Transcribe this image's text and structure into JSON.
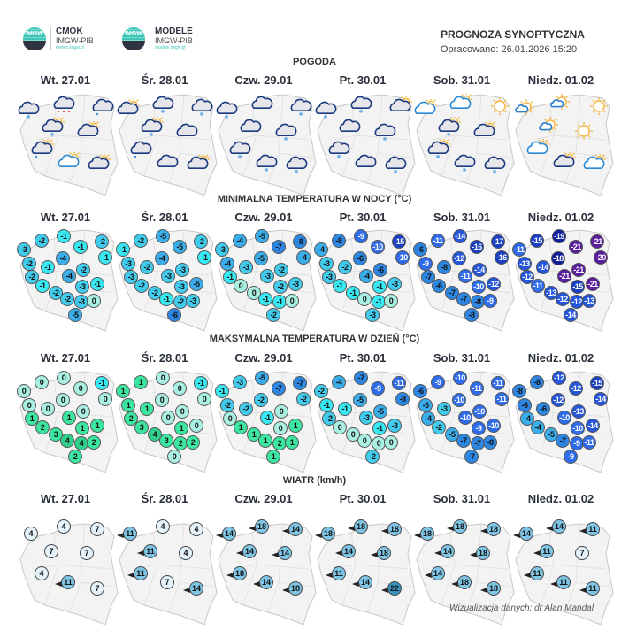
{
  "header": {
    "logo1": {
      "mark": "IMGW",
      "title": "CMOK",
      "sub": "IMGW-PIB",
      "url": "meteo.imgw.pl"
    },
    "logo2": {
      "mark": "IMGW",
      "title": "MODELE",
      "sub": "IMGW-PIB",
      "url": "modele.imgw.pl"
    },
    "title": "PROGNOZA SYNOPTYCZNA",
    "date": "Opracowano: 26.01.2026 15:20"
  },
  "days": [
    "Wt. 27.01",
    "Śr. 28.01",
    "Czw. 29.01",
    "Pt. 30.01",
    "Sob. 31.01",
    "Niedz. 01.02"
  ],
  "sections": {
    "weather": "POGODA",
    "tmin": "MINIMALNA TEMPERATURA W NOCY (°C)",
    "tmax": "MAKSYMALNA TEMPERATURA W DZIEŃ (°C)",
    "wind": "WIATR (km/h)"
  },
  "weather": [
    [
      "overcast-snow",
      "overcast-sleet",
      "overcast-rain",
      "cloud-sun-snow",
      "cloud-sun",
      "cloud-sun-rain",
      "light-cloud-sun",
      "cloud-sun"
    ],
    [
      "cloud-sun",
      "overcast-snow",
      "overcast-snow",
      "cloud-sun-snow",
      "overcast",
      "overcast-rain",
      "overcast",
      "cloud-sun"
    ],
    [
      "overcast-snow",
      "overcast",
      "overcast-snow",
      "overcast",
      "overcast-snow",
      "overcast-snow",
      "overcast-snow",
      "overcast-snow"
    ],
    [
      "overcast-snow",
      "overcast-snow",
      "cloud-sun",
      "overcast",
      "overcast-snow",
      "overcast-snow",
      "overcast",
      "overcast-snow"
    ],
    [
      "light-cloud-sun",
      "light-cloud-sun",
      "sun",
      "cloud-sun-snow",
      "cloud-sun",
      "cloud-sun-snow",
      "overcast-snow",
      "overcast-snow"
    ],
    [
      "sun-small-cloud",
      "sun-small-cloud",
      "sun",
      "sun-small-cloud",
      "sun",
      "light-cloud-sun",
      "cloud-sun",
      "light-cloud-sun"
    ]
  ],
  "tmin": [
    [
      "-2",
      "-1",
      "-3",
      "-1",
      "-2",
      "-1",
      "-4",
      "-2",
      "-1",
      "-2",
      "-2",
      "-4",
      "-1",
      "-3",
      "-1",
      "-2",
      "-2",
      "-3",
      "0",
      "-5"
    ],
    [
      "-2",
      "-5",
      "-1",
      "-5",
      "-2",
      "-1",
      "-4",
      "-3",
      "-2",
      "-3",
      "-3",
      "-3",
      "-2",
      "-3",
      "-5",
      "-2",
      "-1",
      "-2",
      "-3",
      "-6"
    ],
    [
      "-4",
      "-5",
      "-3",
      "-7",
      "-8",
      "-4",
      "-5",
      "-4",
      "-3",
      "-2",
      "-1",
      "-3",
      "0",
      "-2",
      "-3",
      "0",
      "-1",
      "-1",
      "0",
      "-2"
    ],
    [
      "-8",
      "-9",
      "-4",
      "-10",
      "-15",
      "-10",
      "-6",
      "-3",
      "-2",
      "-6",
      "-3",
      "-4",
      "-1",
      "-1",
      "-3",
      "-1",
      "0",
      "-1",
      "0",
      "-3"
    ],
    [
      "-11",
      "-14",
      "-6",
      "-16",
      "-17",
      "-16",
      "-12",
      "-9",
      "-8",
      "-14",
      "-7",
      "-11",
      "-6",
      "-10",
      "-12",
      "-7",
      "-7",
      "-8",
      "-9",
      "-8"
    ],
    [
      "-15",
      "-19",
      "-11",
      "-21",
      "-21",
      "-20",
      "-18",
      "-13",
      "-14",
      "-21",
      "-12",
      "-21",
      "-11",
      "-15",
      "-21",
      "-13",
      "-12",
      "-12",
      "-13",
      "-14"
    ]
  ],
  "tmax": [
    [
      "0",
      "0",
      "0",
      "0",
      "-1",
      "0",
      "0",
      "0",
      "0",
      "0",
      "1",
      "1",
      "2",
      "1",
      "1",
      "3",
      "4",
      "4",
      "2",
      "2"
    ],
    [
      "1",
      "0",
      "1",
      "0",
      "-1",
      "0",
      "0",
      "1",
      "1",
      "0",
      "2",
      "0",
      "3",
      "1",
      "0",
      "4",
      "3",
      "2",
      "2",
      "0"
    ],
    [
      "-3",
      "-5",
      "-1",
      "-7",
      "-7",
      "-2",
      "-2",
      "-2",
      "-2",
      "0",
      "0",
      "-1",
      "1",
      "0",
      "1",
      "1",
      "1",
      "2",
      "1",
      "1"
    ],
    [
      "-4",
      "-7",
      "-2",
      "-9",
      "-11",
      "-8",
      "-5",
      "-1",
      "-1",
      "-5",
      "-2",
      "-3",
      "0",
      "-1",
      "-3",
      "0",
      "0",
      "0",
      "0",
      "-2"
    ],
    [
      "-9",
      "-10",
      "-6",
      "-11",
      "-11",
      "-11",
      "-10",
      "-5",
      "-3",
      "-10",
      "-4",
      "-10",
      "-2",
      "-9",
      "-10",
      "-5",
      "-7",
      "-7",
      "-8",
      "-7"
    ],
    [
      "-8",
      "-12",
      "-8",
      "-12",
      "-15",
      "-14",
      "-12",
      "-6",
      "-6",
      "-13",
      "-4",
      "-10",
      "-4",
      "-10",
      "-14",
      "-5",
      "-7",
      "-9",
      "-11",
      "-9"
    ]
  ],
  "wind": [
    [
      "4",
      "4",
      "7",
      "7",
      "7",
      "4",
      "11",
      "7"
    ],
    [
      "11",
      "4",
      "4",
      "11",
      "4",
      "11",
      "7",
      "14"
    ],
    [
      "14",
      "18",
      "14",
      "14",
      "14",
      "18",
      "14",
      "18"
    ],
    [
      "18",
      "18",
      "18",
      "14",
      "18",
      "11",
      "14",
      "22"
    ],
    [
      "18",
      "18",
      "18",
      "14",
      "18",
      "14",
      "18",
      "18"
    ],
    [
      "14",
      "14",
      "11",
      "11",
      "7",
      "11",
      "11",
      "11"
    ]
  ],
  "credit": "Wizualizacja danych: dr Alan Mandal"
}
